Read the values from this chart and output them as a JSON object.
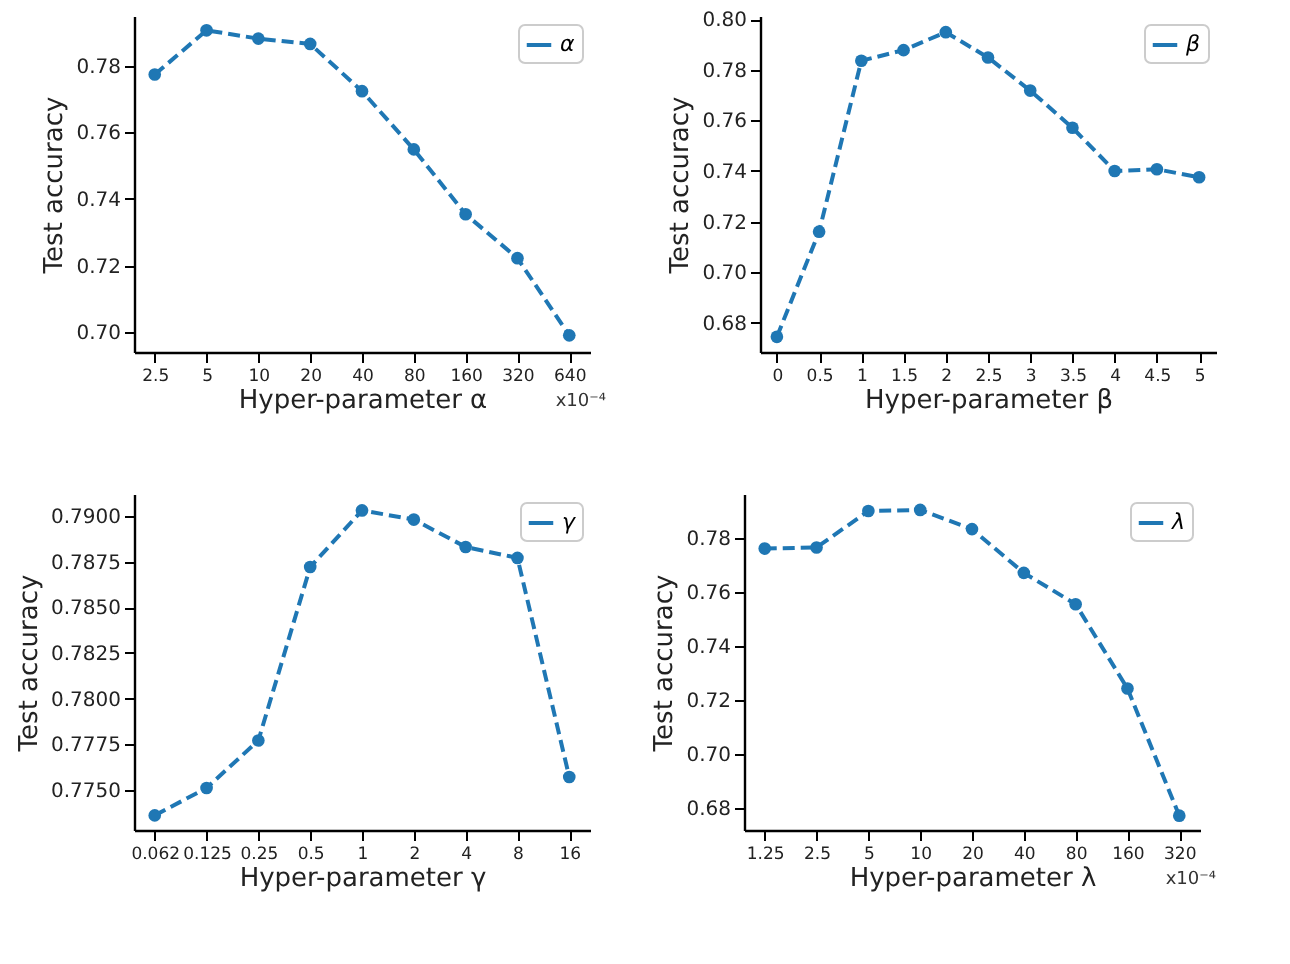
{
  "chart_data": [
    {
      "type": "line",
      "xlabel": "Hyper-parameter α",
      "ylabel": "Test accuracy",
      "categories": [
        "2.5",
        "5",
        "10",
        "20",
        "40",
        "80",
        "160",
        "320",
        "640"
      ],
      "series": [
        {
          "name": "α",
          "color": "#1f77b4",
          "values": [
            0.7774,
            0.7907,
            0.7882,
            0.7866,
            0.7724,
            0.7549,
            0.7354,
            0.7222,
            0.699
          ]
        }
      ],
      "ylim": [
        0.694,
        0.795
      ],
      "yticks": [
        {
          "value": 0.7,
          "label": "0.70"
        },
        {
          "value": 0.72,
          "label": "0.72"
        },
        {
          "value": 0.74,
          "label": "0.74"
        },
        {
          "value": 0.76,
          "label": "0.76"
        },
        {
          "value": 0.78,
          "label": "0.78"
        }
      ],
      "annotations": [
        "x10⁻⁴"
      ],
      "legend": "top right",
      "marker": "circle",
      "line_style": "dashed"
    },
    {
      "type": "line",
      "xlabel": "Hyper-parameter β",
      "ylabel": "Test accuracy",
      "categories": [
        "0",
        "0.5",
        "1",
        "1.5",
        "2",
        "2.5",
        "3",
        "3.5",
        "4",
        "4.5",
        "5"
      ],
      "series": [
        {
          "name": "β",
          "color": "#1f77b4",
          "values": [
            0.6744,
            0.716,
            0.7836,
            0.7878,
            0.7949,
            0.7849,
            0.7718,
            0.7571,
            0.74,
            0.7407,
            0.7375
          ]
        }
      ],
      "ylim": [
        0.6684,
        0.8013
      ],
      "yticks": [
        {
          "value": 0.68,
          "label": "0.68"
        },
        {
          "value": 0.7,
          "label": "0.70"
        },
        {
          "value": 0.72,
          "label": "0.72"
        },
        {
          "value": 0.74,
          "label": "0.74"
        },
        {
          "value": 0.76,
          "label": "0.76"
        },
        {
          "value": 0.78,
          "label": "0.78"
        },
        {
          "value": 0.8,
          "label": "0.80"
        }
      ],
      "legend": "top right",
      "marker": "circle",
      "line_style": "dashed"
    },
    {
      "type": "line",
      "xlabel": "Hyper-parameter γ",
      "ylabel": "Test accuracy",
      "categories": [
        "0.062",
        "0.125",
        "0.25",
        "0.5",
        "1",
        "2",
        "4",
        "8",
        "16"
      ],
      "series": [
        {
          "name": "γ",
          "color": "#1f77b4",
          "values": [
            0.7736,
            0.7751,
            0.7777,
            0.7872,
            0.7903,
            0.7898,
            0.7883,
            0.7877,
            0.7757
          ]
        }
      ],
      "ylim": [
        0.7728,
        0.7912
      ],
      "yticks": [
        {
          "value": 0.775,
          "label": "0.7750"
        },
        {
          "value": 0.7775,
          "label": "0.7775"
        },
        {
          "value": 0.78,
          "label": "0.7800"
        },
        {
          "value": 0.7825,
          "label": "0.7825"
        },
        {
          "value": 0.785,
          "label": "0.7850"
        },
        {
          "value": 0.7875,
          "label": "0.7875"
        },
        {
          "value": 0.79,
          "label": "0.7900"
        }
      ],
      "legend": "top right",
      "marker": "circle",
      "line_style": "dashed"
    },
    {
      "type": "line",
      "xlabel": "Hyper-parameter λ",
      "ylabel": "Test accuracy",
      "categories": [
        "1.25",
        "2.5",
        "5",
        "10",
        "20",
        "40",
        "80",
        "160",
        "320"
      ],
      "series": [
        {
          "name": "λ",
          "color": "#1f77b4",
          "values": [
            0.7762,
            0.7766,
            0.7901,
            0.7905,
            0.7834,
            0.7672,
            0.7556,
            0.7244,
            0.6773
          ]
        }
      ],
      "ylim": [
        0.672,
        0.7964
      ],
      "yticks": [
        {
          "value": 0.68,
          "label": "0.68"
        },
        {
          "value": 0.7,
          "label": "0.70"
        },
        {
          "value": 0.72,
          "label": "0.72"
        },
        {
          "value": 0.74,
          "label": "0.74"
        },
        {
          "value": 0.76,
          "label": "0.76"
        },
        {
          "value": 0.78,
          "label": "0.78"
        }
      ],
      "annotations": [
        "x10⁻⁴"
      ],
      "legend": "top right",
      "marker": "circle",
      "line_style": "dashed"
    }
  ]
}
